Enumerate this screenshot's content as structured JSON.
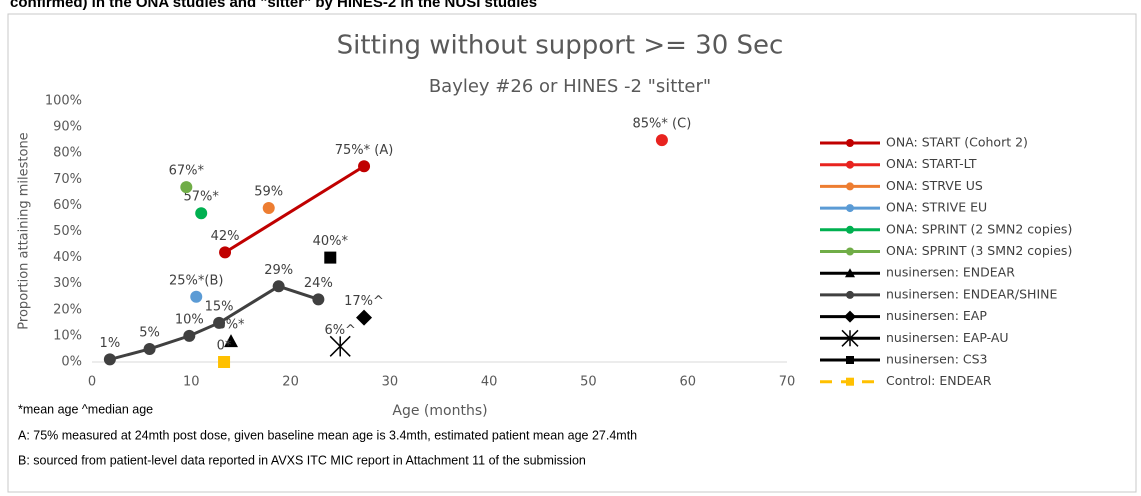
{
  "header": "confirmed) in the ONA studies and \"sitter\" by HINES-2 in the NUSI studies",
  "chart_data": {
    "type": "scatter",
    "title": "Sitting without support >= 30 Sec",
    "subtitle": "Bayley #26  or HINES -2 \"sitter\"",
    "x_label": "Age (months)",
    "y_label": "Proportion attaining milestone",
    "xlim": [
      0,
      70
    ],
    "xticks": [
      0,
      10,
      20,
      30,
      40,
      50,
      60,
      70
    ],
    "ylim": [
      0,
      100
    ],
    "yticks": [
      {
        "value": 0,
        "label": "0%"
      },
      {
        "value": 10,
        "label": "10%"
      },
      {
        "value": 20,
        "label": "20%"
      },
      {
        "value": 30,
        "label": "30%"
      },
      {
        "value": 40,
        "label": "40%"
      },
      {
        "value": 50,
        "label": "50%"
      },
      {
        "value": 60,
        "label": "60%"
      },
      {
        "value": 70,
        "label": "70%"
      },
      {
        "value": 80,
        "label": "80%"
      },
      {
        "value": 90,
        "label": "90%"
      },
      {
        "value": 100,
        "label": "100%"
      }
    ],
    "grid": false,
    "legend": "right",
    "series": [
      {
        "name": "ONA: START (Cohort 2)",
        "color": "#c00000",
        "marker": "circle",
        "line": true,
        "x": [
          13.4,
          27.4
        ],
        "values": [
          42,
          75
        ],
        "value_labels": [
          "42%",
          "75%* (A)"
        ]
      },
      {
        "name": "ONA: START-LT",
        "color": "#e8231f",
        "marker": "circle",
        "line": false,
        "x": [
          57.4
        ],
        "values": [
          85
        ],
        "value_labels": [
          "85%* (C)"
        ]
      },
      {
        "name": "ONA: STRVE US",
        "color": "#ed7d31",
        "marker": "circle",
        "line": false,
        "x": [
          17.8
        ],
        "values": [
          59
        ],
        "value_labels": [
          "59%"
        ]
      },
      {
        "name": "ONA: STRIVE EU",
        "color": "#5b9bd5",
        "marker": "circle",
        "line": false,
        "x": [
          10.5
        ],
        "values": [
          25
        ],
        "value_labels": [
          "25%*(B)"
        ]
      },
      {
        "name": "ONA: SPRINT (2 SMN2 copies)",
        "color": "#00b050",
        "marker": "circle",
        "line": false,
        "x": [
          11
        ],
        "values": [
          57
        ],
        "value_labels": [
          "57%*"
        ]
      },
      {
        "name": "ONA: SPRINT (3 SMN2 copies)",
        "color": "#70ad47",
        "marker": "circle",
        "line": false,
        "x": [
          9.5
        ],
        "values": [
          67
        ],
        "value_labels": [
          "67%*"
        ]
      },
      {
        "name": "nusinersen: ENDEAR",
        "color": "#000000",
        "marker": "triangle",
        "line": false,
        "x": [
          14
        ],
        "values": [
          8
        ],
        "value_labels": [
          "8%*"
        ]
      },
      {
        "name": "nusinersen: ENDEAR/SHINE",
        "color": "#404040",
        "marker": "circle",
        "line": true,
        "x": [
          1.8,
          5.8,
          9.8,
          12.8,
          18.8,
          22.8
        ],
        "values": [
          1,
          5,
          10,
          15,
          29,
          24
        ],
        "value_labels": [
          "1%",
          "5%",
          "10%",
          "15%",
          "29%",
          "24%"
        ]
      },
      {
        "name": "nusinersen: EAP",
        "color": "#000000",
        "marker": "diamond",
        "line": false,
        "x": [
          27.4
        ],
        "values": [
          17
        ],
        "value_labels": [
          "17%^"
        ]
      },
      {
        "name": "nusinersen: EAP-AU",
        "color": "#000000",
        "marker": "star",
        "line": false,
        "x": [
          25
        ],
        "values": [
          6
        ],
        "value_labels": [
          "6%^"
        ]
      },
      {
        "name": "nusinersen: CS3",
        "color": "#000000",
        "marker": "square",
        "line": false,
        "x": [
          24
        ],
        "values": [
          40
        ],
        "value_labels": [
          "40%*"
        ]
      },
      {
        "name": "Control: ENDEAR",
        "color": "#ffc000",
        "marker": "square",
        "line": false,
        "dashed": true,
        "x": [
          13.3
        ],
        "values": [
          0
        ],
        "value_labels": [
          "0*"
        ]
      }
    ]
  },
  "footnotes": [
    "*mean age ^median age",
    "A: 75% measured at 24mth post dose, given baseline mean age is 3.4mth, estimated patient mean age 27.4mth",
    "B:  sourced from patient-level data reported in AVXS ITC MIC report in Attachment 11 of the submission"
  ]
}
